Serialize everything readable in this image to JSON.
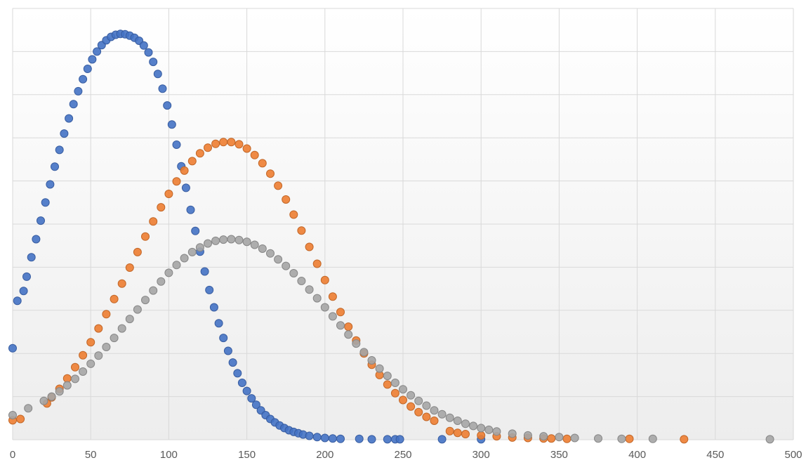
{
  "chart_data": {
    "type": "scatter",
    "title": "",
    "xlabel": "",
    "ylabel": "",
    "xlim": [
      0,
      500
    ],
    "ylim": [
      0,
      1
    ],
    "x_ticks": [
      "0",
      "50",
      "100",
      "150",
      "200",
      "250",
      "300",
      "350",
      "400",
      "450",
      "500"
    ],
    "y_ticks_shown": false,
    "grid": true,
    "legend": "none",
    "series": [
      {
        "color": "#4472C4",
        "x": [
          0,
          3,
          7,
          9,
          12,
          15,
          18,
          21,
          24,
          27,
          30,
          33,
          36,
          39,
          42,
          45,
          48,
          51,
          54,
          57,
          60,
          63,
          66,
          69,
          72,
          75,
          78,
          81,
          84,
          87,
          90,
          93,
          96,
          99,
          102,
          105,
          108,
          111,
          114,
          117,
          120,
          123,
          126,
          129,
          132,
          135,
          138,
          141,
          144,
          147,
          150,
          153,
          156,
          159,
          162,
          165,
          168,
          171,
          174,
          177,
          180,
          183,
          186,
          190,
          195,
          200,
          205,
          210,
          222,
          230,
          240,
          245,
          248,
          275,
          300
        ],
        "y": [
          0.212,
          0.322,
          0.345,
          0.378,
          0.423,
          0.465,
          0.508,
          0.55,
          0.592,
          0.633,
          0.672,
          0.71,
          0.745,
          0.778,
          0.808,
          0.836,
          0.86,
          0.882,
          0.9,
          0.915,
          0.926,
          0.934,
          0.939,
          0.941,
          0.94,
          0.937,
          0.932,
          0.925,
          0.914,
          0.898,
          0.876,
          0.848,
          0.814,
          0.775,
          0.731,
          0.684,
          0.634,
          0.584,
          0.533,
          0.484,
          0.436,
          0.39,
          0.347,
          0.307,
          0.27,
          0.236,
          0.206,
          0.179,
          0.154,
          0.132,
          0.113,
          0.096,
          0.081,
          0.068,
          0.057,
          0.048,
          0.04,
          0.033,
          0.027,
          0.022,
          0.018,
          0.015,
          0.012,
          0.009,
          0.006,
          0.004,
          0.003,
          0.002,
          0.002,
          0.001,
          0.001,
          0.001,
          0.001,
          0.001,
          0.001
        ]
      },
      {
        "color": "#ED7D31",
        "x": [
          0,
          5,
          22,
          25,
          30,
          35,
          40,
          45,
          50,
          55,
          60,
          65,
          70,
          75,
          80,
          85,
          90,
          95,
          100,
          105,
          110,
          115,
          120,
          125,
          130,
          135,
          140,
          145,
          150,
          155,
          160,
          165,
          170,
          175,
          180,
          185,
          190,
          195,
          200,
          205,
          210,
          215,
          220,
          225,
          230,
          235,
          240,
          245,
          250,
          255,
          260,
          265,
          270,
          280,
          285,
          290,
          300,
          310,
          320,
          330,
          340,
          345,
          355,
          395,
          430
        ],
        "y": [
          0.045,
          0.048,
          0.084,
          0.098,
          0.118,
          0.142,
          0.168,
          0.196,
          0.226,
          0.258,
          0.291,
          0.326,
          0.362,
          0.399,
          0.435,
          0.471,
          0.506,
          0.539,
          0.57,
          0.599,
          0.624,
          0.646,
          0.664,
          0.677,
          0.686,
          0.69,
          0.69,
          0.685,
          0.675,
          0.66,
          0.641,
          0.617,
          0.589,
          0.557,
          0.522,
          0.485,
          0.447,
          0.408,
          0.37,
          0.332,
          0.296,
          0.262,
          0.23,
          0.2,
          0.174,
          0.15,
          0.128,
          0.108,
          0.092,
          0.077,
          0.064,
          0.053,
          0.044,
          0.02,
          0.016,
          0.013,
          0.01,
          0.008,
          0.005,
          0.004,
          0.003,
          0.003,
          0.002,
          0.002,
          0.001
        ]
      },
      {
        "color": "#A5A5A5",
        "x": [
          0,
          10,
          20,
          25,
          30,
          35,
          40,
          45,
          50,
          55,
          60,
          65,
          70,
          75,
          80,
          85,
          90,
          95,
          100,
          105,
          110,
          115,
          120,
          125,
          130,
          135,
          140,
          145,
          150,
          155,
          160,
          165,
          170,
          175,
          180,
          185,
          190,
          195,
          200,
          205,
          210,
          215,
          220,
          225,
          230,
          235,
          240,
          245,
          250,
          255,
          260,
          265,
          270,
          275,
          280,
          285,
          290,
          295,
          300,
          305,
          310,
          320,
          330,
          340,
          350,
          360,
          375,
          390,
          410,
          485
        ],
        "y": [
          0.057,
          0.073,
          0.09,
          0.1,
          0.112,
          0.126,
          0.141,
          0.158,
          0.176,
          0.195,
          0.215,
          0.236,
          0.258,
          0.28,
          0.302,
          0.324,
          0.346,
          0.367,
          0.387,
          0.405,
          0.421,
          0.435,
          0.446,
          0.455,
          0.461,
          0.464,
          0.465,
          0.463,
          0.459,
          0.452,
          0.443,
          0.432,
          0.418,
          0.403,
          0.386,
          0.368,
          0.348,
          0.328,
          0.307,
          0.286,
          0.265,
          0.244,
          0.223,
          0.203,
          0.184,
          0.165,
          0.148,
          0.132,
          0.117,
          0.103,
          0.09,
          0.079,
          0.068,
          0.059,
          0.051,
          0.044,
          0.037,
          0.032,
          0.027,
          0.023,
          0.019,
          0.014,
          0.01,
          0.008,
          0.006,
          0.004,
          0.003,
          0.002,
          0.002,
          0.001
        ]
      }
    ]
  }
}
